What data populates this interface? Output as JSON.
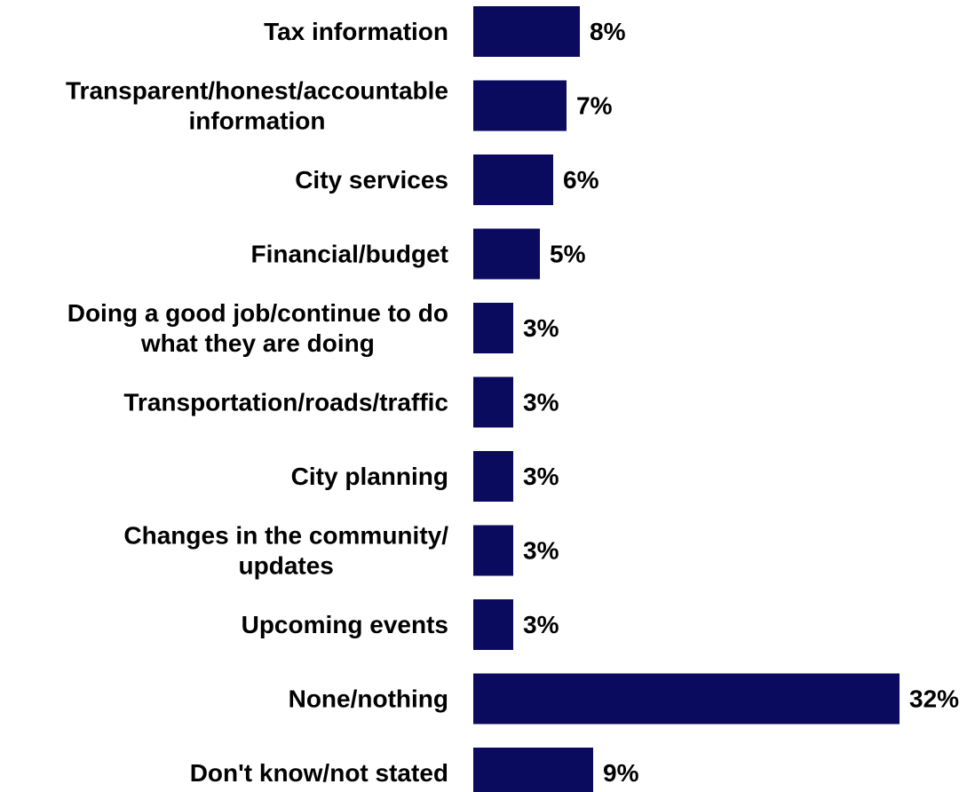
{
  "chart_data": {
    "type": "bar",
    "orientation": "horizontal",
    "categories": [
      [
        "Tax information"
      ],
      [
        "Transparent/honest/accountable",
        "information"
      ],
      [
        "City services"
      ],
      [
        "Financial/budget"
      ],
      [
        "Doing a good job/continue to do",
        "what they are doing"
      ],
      [
        "Transportation/roads/traffic"
      ],
      [
        "City planning"
      ],
      [
        "Changes in the community/",
        "updates"
      ],
      [
        "Upcoming events"
      ],
      [
        "None/nothing"
      ],
      [
        "Don't know/not stated"
      ]
    ],
    "values": [
      8,
      7,
      6,
      5,
      3,
      3,
      3,
      3,
      3,
      32,
      9
    ],
    "value_labels": [
      "8%",
      "7%",
      "6%",
      "5%",
      "3%",
      "3%",
      "3%",
      "3%",
      "3%",
      "32%",
      "9%"
    ],
    "unit": "%",
    "bar_color": "#0a0a5e",
    "xlim": [
      0,
      32
    ],
    "grid": false,
    "legend": "none"
  }
}
